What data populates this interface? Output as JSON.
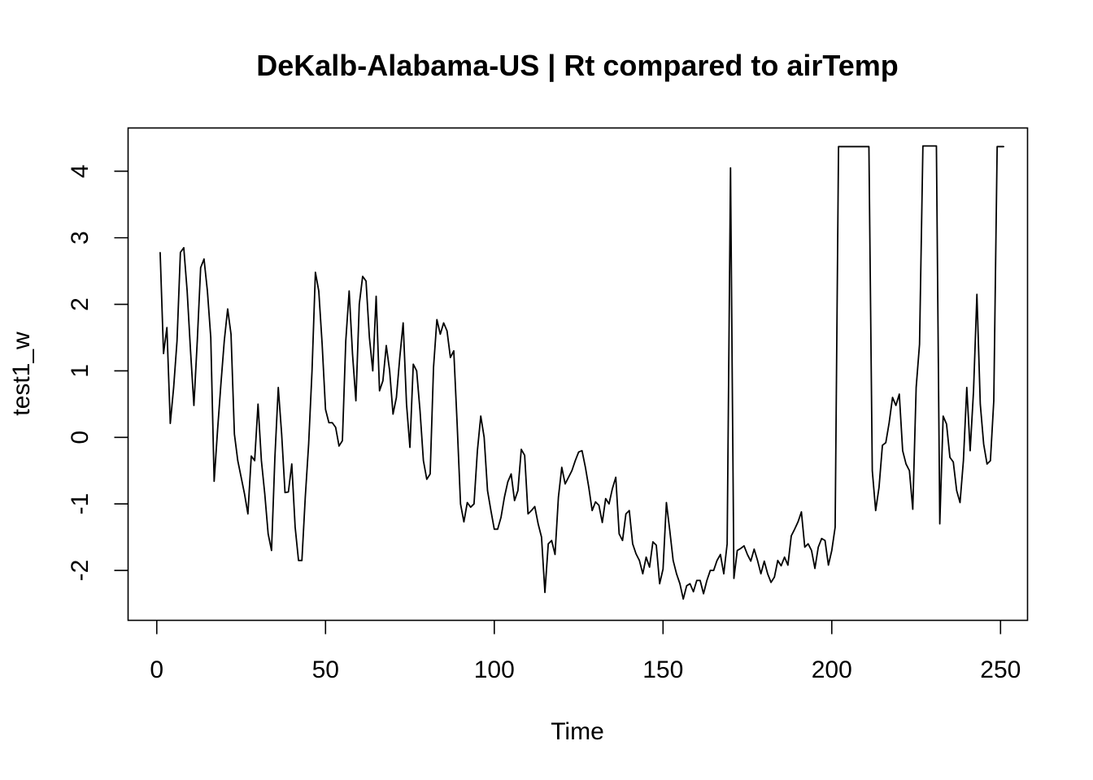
{
  "chart_data": {
    "type": "line",
    "title": "DeKalb-Alabama-US | Rt compared to airTemp",
    "xlabel": "Time",
    "ylabel": "test1_w",
    "xlim": [
      -8.5,
      258
    ],
    "ylim": [
      -2.75,
      4.65
    ],
    "x_ticks": [
      0,
      50,
      100,
      150,
      200,
      250
    ],
    "x_tick_labels": [
      "0",
      "50",
      "100",
      "150",
      "200",
      "250"
    ],
    "y_ticks": [
      -2,
      -1,
      0,
      1,
      2,
      3,
      4
    ],
    "y_tick_labels": [
      "-2",
      "-1",
      "0",
      "1",
      "2",
      "3",
      "4"
    ],
    "grid": false,
    "legend": "none",
    "color": "#000000",
    "series": [
      {
        "x_start": 1,
        "values": [
          2.78,
          1.26,
          1.65,
          0.21,
          0.75,
          1.45,
          2.78,
          2.85,
          2.2,
          1.3,
          0.48,
          1.45,
          2.55,
          2.68,
          2.2,
          1.5,
          -0.66,
          0.1,
          0.8,
          1.45,
          1.93,
          1.55,
          0.05,
          -0.35,
          -0.6,
          -0.85,
          -1.15,
          -0.28,
          -0.35,
          0.5,
          -0.35,
          -0.85,
          -1.45,
          -1.7,
          -0.3,
          0.75,
          0.05,
          -0.83,
          -0.82,
          -0.4,
          -1.35,
          -1.85,
          -1.85,
          -0.9,
          -0.1,
          1.0,
          2.48,
          2.2,
          1.4,
          0.42,
          0.22,
          0.22,
          0.15,
          -0.13,
          -0.05,
          1.45,
          2.2,
          1.25,
          0.55,
          2.0,
          2.42,
          2.35,
          1.5,
          1.0,
          2.12,
          0.7,
          0.85,
          1.38,
          1.0,
          0.35,
          0.6,
          1.2,
          1.72,
          0.5,
          -0.15,
          1.1,
          1.0,
          0.4,
          -0.35,
          -0.63,
          -0.55,
          1.05,
          1.77,
          1.55,
          1.72,
          1.6,
          1.2,
          1.3,
          0.2,
          -1.0,
          -1.27,
          -0.98,
          -1.05,
          -1.0,
          -0.2,
          0.32,
          0.0,
          -0.8,
          -1.1,
          -1.38,
          -1.38,
          -1.2,
          -0.9,
          -0.67,
          -0.55,
          -0.95,
          -0.8,
          -0.18,
          -0.27,
          -1.15,
          -1.1,
          -1.04,
          -1.3,
          -1.5,
          -2.33,
          -1.6,
          -1.55,
          -1.76,
          -0.9,
          -0.45,
          -0.7,
          -0.6,
          -0.5,
          -0.35,
          -0.22,
          -0.2,
          -0.45,
          -0.75,
          -1.1,
          -0.97,
          -1.02,
          -1.28,
          -0.92,
          -1.0,
          -0.77,
          -0.6,
          -1.45,
          -1.55,
          -1.15,
          -1.1,
          -1.6,
          -1.75,
          -1.85,
          -2.05,
          -1.8,
          -1.95,
          -1.57,
          -1.62,
          -2.2,
          -1.98,
          -0.98,
          -1.4,
          -1.85,
          -2.05,
          -2.2,
          -2.43,
          -2.23,
          -2.2,
          -2.32,
          -2.15,
          -2.15,
          -2.35,
          -2.15,
          -2.0,
          -2.0,
          -1.85,
          -1.76,
          -2.05,
          -1.6,
          4.05,
          -2.12,
          -1.7,
          -1.67,
          -1.63,
          -1.76,
          -1.86,
          -1.68,
          -1.85,
          -2.05,
          -1.86,
          -2.05,
          -2.18,
          -2.1,
          -1.85,
          -1.93,
          -1.8,
          -1.92,
          -1.48,
          -1.38,
          -1.27,
          -1.12,
          -1.65,
          -1.6,
          -1.7,
          -1.97,
          -1.65,
          -1.52,
          -1.55,
          -1.92,
          -1.7,
          -1.35,
          4.37,
          4.37,
          4.37,
          4.37,
          4.37,
          4.37,
          4.37,
          4.37,
          4.37,
          4.37,
          -0.5,
          -1.1,
          -0.75,
          -0.12,
          -0.08,
          0.22,
          0.6,
          0.48,
          0.65,
          -0.2,
          -0.4,
          -0.5,
          -1.08,
          0.75,
          1.4,
          4.38,
          4.38,
          4.38,
          4.38,
          4.38,
          -1.3,
          0.32,
          0.2,
          -0.3,
          -0.37,
          -0.8,
          -0.98,
          -0.35,
          0.75,
          -0.2,
          0.7,
          2.15,
          0.5,
          -0.1,
          -0.4,
          -0.35,
          0.55,
          4.37,
          4.37,
          4.37
        ]
      }
    ]
  }
}
